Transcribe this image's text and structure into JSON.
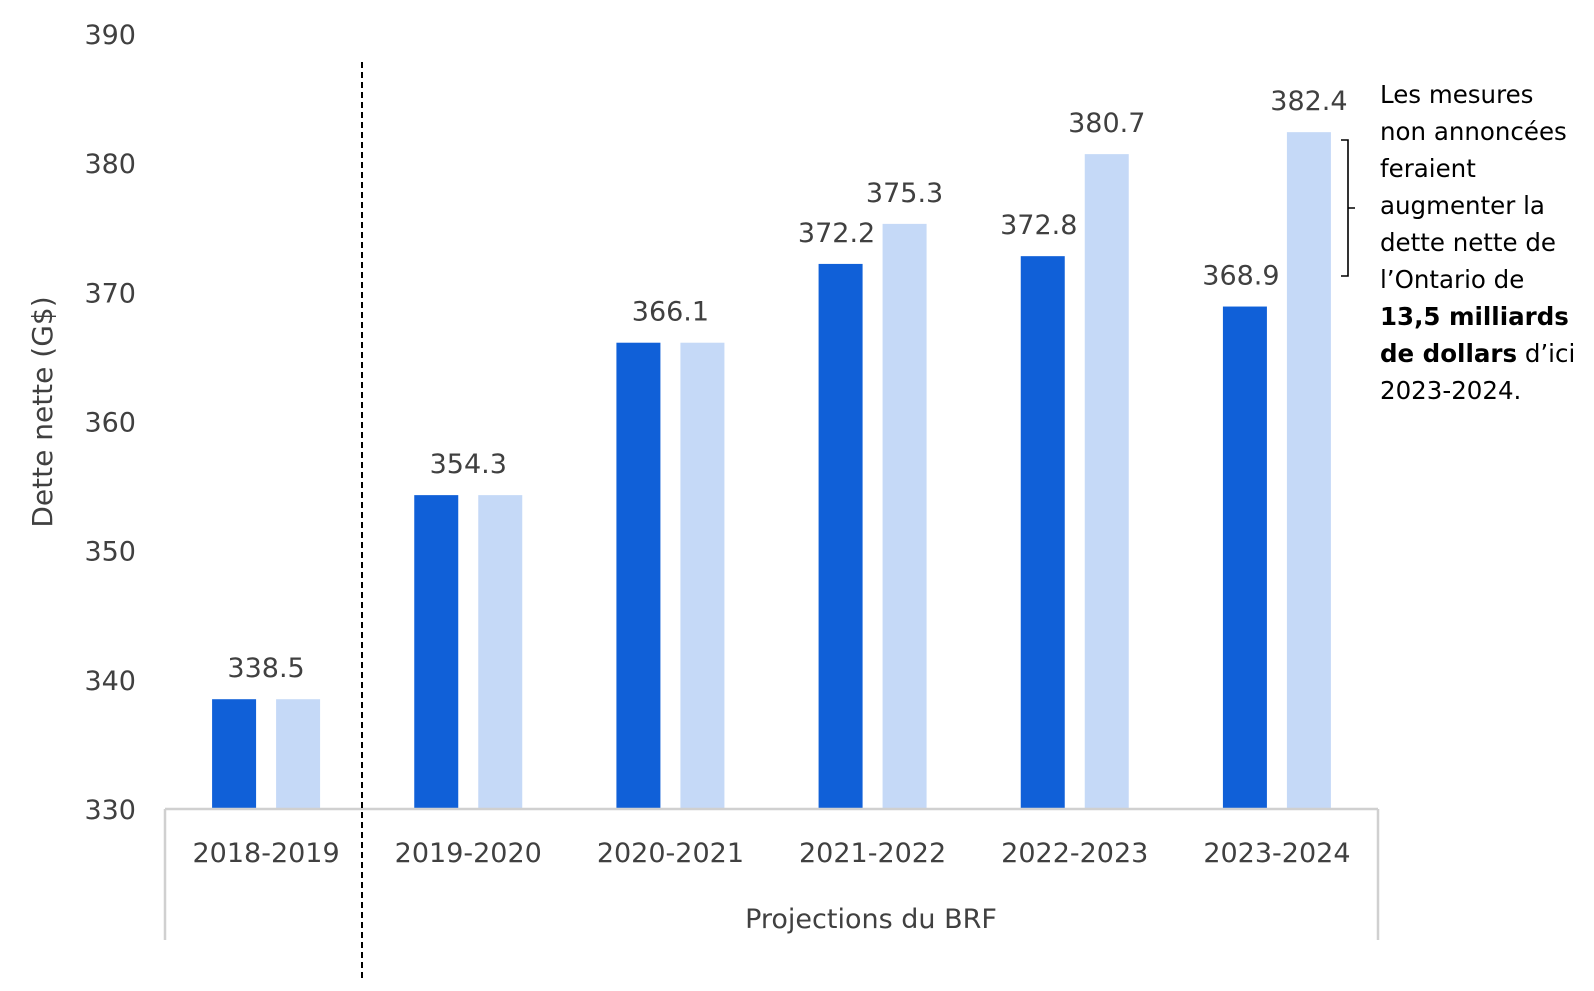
{
  "chart_data": {
    "type": "bar",
    "categories": [
      "2018-2019",
      "2019-2020",
      "2020-2021",
      "2021-2022",
      "2022-2023",
      "2023-2024"
    ],
    "series": [
      {
        "values": [
          338.5,
          354.3,
          366.1,
          372.2,
          372.8,
          368.9
        ],
        "color": "#1060D8"
      },
      {
        "values": [
          338.5,
          354.3,
          366.1,
          375.3,
          380.7,
          382.4
        ],
        "color": "#C5D9F7"
      }
    ],
    "data_labels": [
      {
        "category": "2018-2019",
        "text": "338.5"
      },
      {
        "category": "2019-2020",
        "text": "354.3"
      },
      {
        "category": "2020-2021",
        "text": "366.1"
      },
      {
        "category": "2021-2022",
        "text": "372.2",
        "series": 0
      },
      {
        "category": "2021-2022",
        "text": "375.3",
        "series": 1
      },
      {
        "category": "2022-2023",
        "text": "372.8",
        "series": 0
      },
      {
        "category": "2022-2023",
        "text": "380.7",
        "series": 1
      },
      {
        "category": "2023-2024",
        "text": "368.9",
        "series": 0
      },
      {
        "category": "2023-2024",
        "text": "382.4",
        "series": 1
      }
    ],
    "ylabel": "Dette nette (G$)",
    "ylim": [
      330,
      390
    ],
    "yticks": [
      330,
      340,
      350,
      360,
      370,
      380,
      390
    ],
    "group_label": "Projections du BRF",
    "grid": false,
    "legend": "none"
  },
  "annotation": {
    "lines": [
      {
        "text": "Les mesures"
      },
      {
        "text": "non annoncées"
      },
      {
        "text": "feraient"
      },
      {
        "text": "augmenter la"
      },
      {
        "text": "dette nette de"
      },
      {
        "text": "l’Ontario de"
      },
      {
        "bold": "13,5 milliards"
      },
      {
        "bold": "de dollars",
        "text": " d’ici"
      },
      {
        "text": "2023-2024."
      }
    ]
  }
}
